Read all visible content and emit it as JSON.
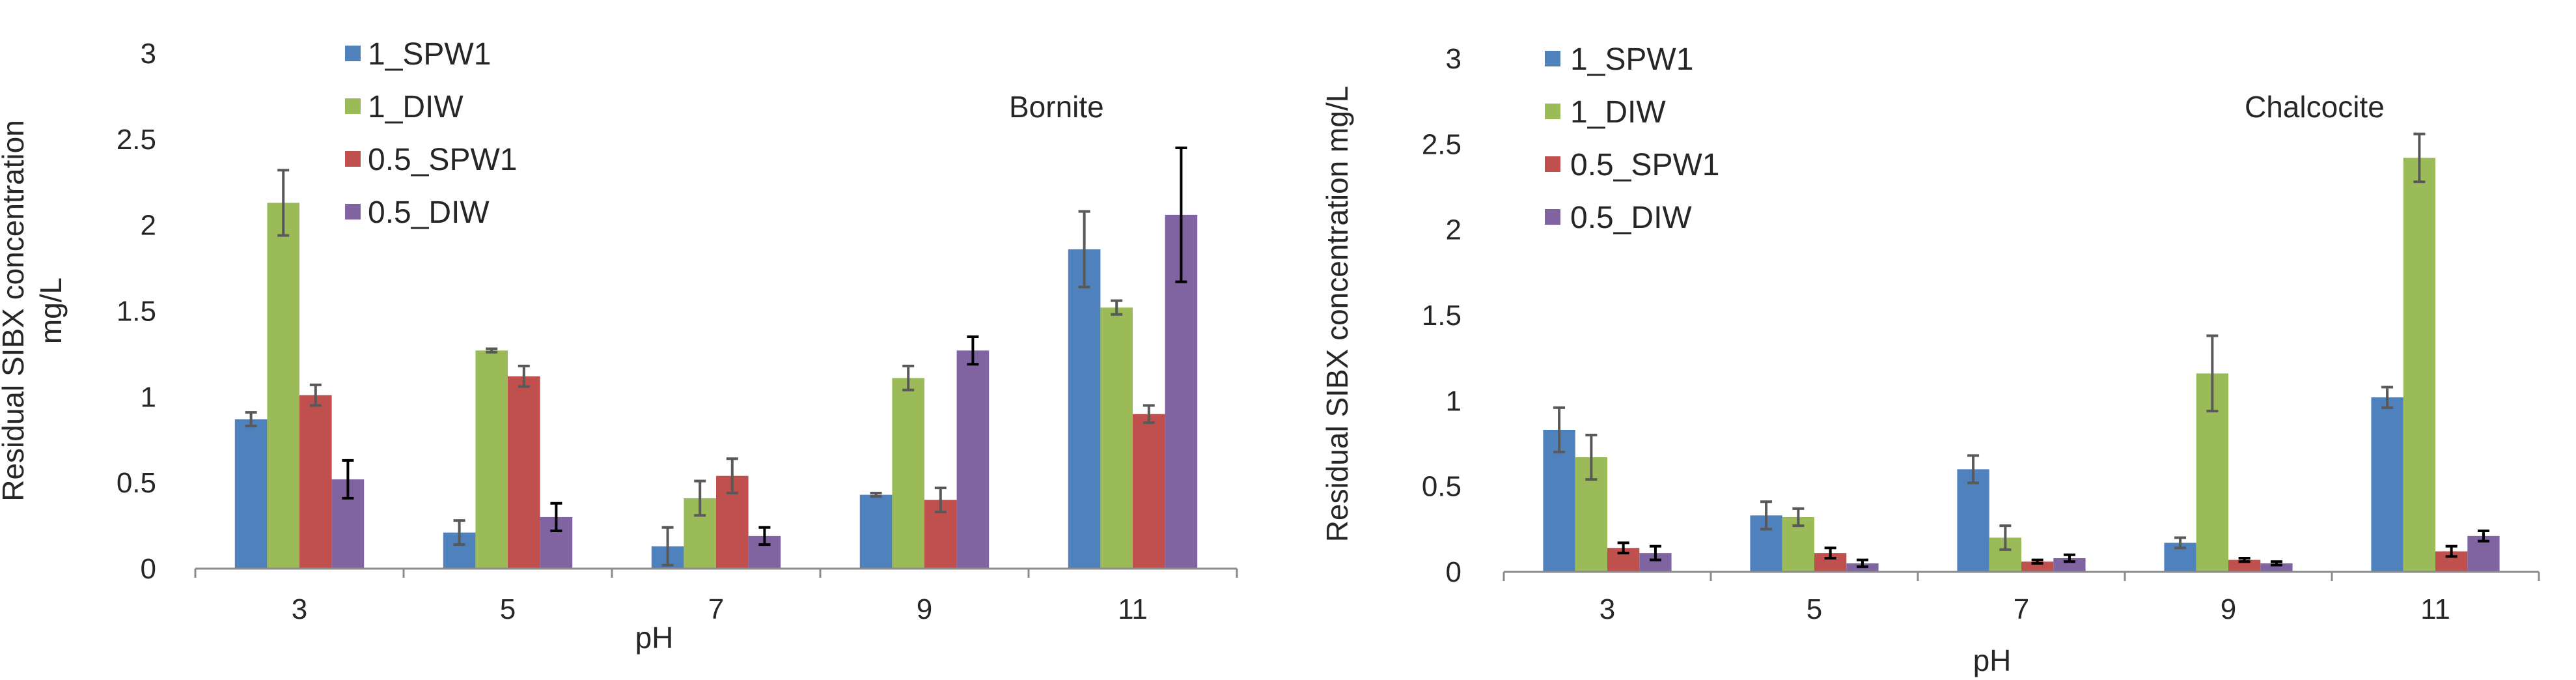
{
  "chart_data": [
    {
      "type": "bar",
      "title": "",
      "annotation": "Bornite",
      "xlabel": "pH",
      "ylabel_lines": [
        "Residual SIBX concentration",
        "mg/L"
      ],
      "categories": [
        "3",
        "5",
        "7",
        "9",
        "11"
      ],
      "ylim": [
        0,
        3
      ],
      "yticks": [
        0,
        0.5,
        1,
        1.5,
        2,
        2.5,
        3
      ],
      "ytick_labels": [
        "0",
        "0.5",
        "1",
        "1.5",
        "2",
        "2.5",
        "3"
      ],
      "grid": false,
      "legend_position": "top-left",
      "series": [
        {
          "name": "1_SPW1",
          "color": "#4f81bd",
          "errorbar_color": "#595959",
          "values": [
            0.87,
            0.21,
            0.13,
            0.43,
            1.86
          ],
          "errors": [
            0.04,
            0.07,
            0.11,
            0.01,
            0.22
          ]
        },
        {
          "name": "1_DIW",
          "color": "#9bbb59",
          "errorbar_color": "#595959",
          "values": [
            2.13,
            1.27,
            0.41,
            1.11,
            1.52
          ],
          "errors": [
            0.19,
            0.01,
            0.1,
            0.07,
            0.04
          ]
        },
        {
          "name": "0.5_SPW1",
          "color": "#c0504d",
          "errorbar_color": "#595959",
          "values": [
            1.01,
            1.12,
            0.54,
            0.4,
            0.9
          ],
          "errors": [
            0.06,
            0.06,
            0.1,
            0.07,
            0.05
          ]
        },
        {
          "name": "0.5_DIW",
          "color": "#8064a2",
          "errorbar_color": "#000000",
          "values": [
            0.52,
            0.3,
            0.19,
            1.27,
            2.06
          ],
          "errors": [
            0.11,
            0.08,
            0.05,
            0.08,
            0.39
          ]
        }
      ]
    },
    {
      "type": "bar",
      "title": "",
      "annotation": "Chalcocite",
      "xlabel": "pH",
      "ylabel_lines": [
        "Residual SIBX concentration mg/L"
      ],
      "categories": [
        "3",
        "5",
        "7",
        "9",
        "11"
      ],
      "ylim": [
        0,
        3
      ],
      "yticks": [
        0,
        0.5,
        1,
        1.5,
        2,
        2.5,
        3
      ],
      "ytick_labels": [
        "0",
        "0.5",
        "1",
        "1.5",
        "2",
        "2.5",
        "3"
      ],
      "grid": false,
      "legend_position": "top-left",
      "series": [
        {
          "name": "1_SPW1",
          "color": "#4f81bd",
          "errorbar_color": "#595959",
          "values": [
            0.83,
            0.33,
            0.6,
            0.17,
            1.02
          ],
          "errors": [
            0.13,
            0.08,
            0.08,
            0.03,
            0.06
          ]
        },
        {
          "name": "1_DIW",
          "color": "#9bbb59",
          "errorbar_color": "#595959",
          "values": [
            0.67,
            0.32,
            0.2,
            1.16,
            2.42
          ],
          "errors": [
            0.13,
            0.05,
            0.07,
            0.22,
            0.14
          ]
        },
        {
          "name": "0.5_SPW1",
          "color": "#c0504d",
          "errorbar_color": "#000000",
          "values": [
            0.14,
            0.11,
            0.06,
            0.07,
            0.12
          ],
          "errors": [
            0.03,
            0.03,
            0.01,
            0.01,
            0.03
          ]
        },
        {
          "name": "0.5_DIW",
          "color": "#8064a2",
          "errorbar_color": "#000000",
          "values": [
            0.11,
            0.05,
            0.08,
            0.05,
            0.21
          ],
          "errors": [
            0.04,
            0.02,
            0.02,
            0.01,
            0.03
          ]
        }
      ]
    }
  ]
}
